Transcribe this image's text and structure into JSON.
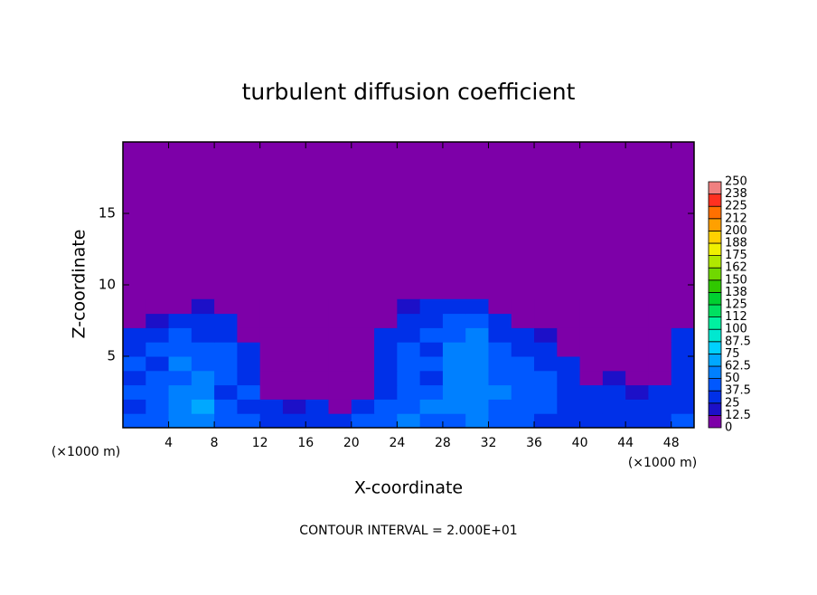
{
  "chart_data": {
    "type": "heatmap",
    "title": "turbulent diffusion coefficient",
    "x_label": "X-coordinate",
    "y_label": "Z-coordinate",
    "x_unit": "(×1000 m)",
    "x_unit_right": "(×1000 m)",
    "note": "CONTOUR INTERVAL = 2.000E+01",
    "xlim": [
      0,
      50
    ],
    "ylim": [
      0,
      20
    ],
    "xticks": [
      4,
      8,
      12,
      16,
      20,
      24,
      28,
      32,
      36,
      40,
      44,
      48
    ],
    "yticks": [
      5,
      10,
      15
    ],
    "x": [
      1,
      3,
      5,
      7,
      9,
      11,
      13,
      15,
      17,
      19,
      21,
      23,
      25,
      27,
      29,
      31,
      33,
      35,
      37,
      39,
      41,
      43,
      45,
      47,
      49
    ],
    "y": [
      0.5,
      1.5,
      2.5,
      3.5,
      4.5,
      5.5,
      6.5,
      7.5,
      8.5
    ],
    "values": [
      [
        40,
        45,
        50,
        60,
        45,
        40,
        35,
        30,
        35,
        25,
        40,
        45,
        50,
        40,
        45,
        55,
        45,
        40,
        35,
        30,
        30,
        35,
        30,
        35,
        40
      ],
      [
        35,
        40,
        55,
        65,
        40,
        35,
        25,
        20,
        25,
        0,
        25,
        40,
        45,
        50,
        50,
        60,
        45,
        45,
        40,
        30,
        30,
        30,
        25,
        30,
        35
      ],
      [
        40,
        45,
        50,
        60,
        35,
        40,
        0,
        0,
        0,
        0,
        0,
        35,
        40,
        45,
        55,
        60,
        50,
        40,
        45,
        35,
        25,
        25,
        20,
        25,
        35
      ],
      [
        35,
        40,
        45,
        55,
        40,
        35,
        0,
        0,
        0,
        0,
        0,
        35,
        40,
        35,
        50,
        55,
        45,
        45,
        40,
        35,
        0,
        20,
        0,
        0,
        35
      ],
      [
        40,
        35,
        50,
        45,
        45,
        35,
        0,
        0,
        0,
        0,
        0,
        30,
        45,
        40,
        55,
        60,
        40,
        40,
        35,
        30,
        0,
        0,
        0,
        0,
        35
      ],
      [
        35,
        40,
        45,
        40,
        40,
        25,
        0,
        0,
        0,
        0,
        0,
        30,
        40,
        35,
        50,
        55,
        40,
        35,
        30,
        0,
        0,
        0,
        0,
        0,
        30
      ],
      [
        30,
        35,
        40,
        35,
        35,
        0,
        0,
        0,
        0,
        0,
        0,
        25,
        35,
        40,
        45,
        50,
        35,
        30,
        20,
        0,
        0,
        0,
        0,
        0,
        25
      ],
      [
        0,
        20,
        30,
        30,
        25,
        0,
        0,
        0,
        0,
        0,
        0,
        0,
        30,
        35,
        40,
        45,
        30,
        0,
        0,
        0,
        0,
        0,
        0,
        0,
        0
      ],
      [
        0,
        0,
        0,
        20,
        0,
        0,
        0,
        0,
        0,
        0,
        0,
        0,
        20,
        25,
        30,
        30,
        0,
        0,
        0,
        0,
        0,
        0,
        0,
        0,
        0
      ]
    ],
    "colorbar": {
      "levels": [
        0,
        12.5,
        25,
        37.5,
        50,
        62.5,
        75,
        87.5,
        100,
        {
          "value": 112.5,
          "label": "112"
        },
        125,
        {
          "value": 137.5,
          "label": "138"
        },
        150,
        {
          "value": 162.5,
          "label": "162"
        },
        175,
        {
          "value": 187.5,
          "label": "188"
        },
        200,
        {
          "value": 212.5,
          "label": "212"
        },
        225,
        {
          "value": 237.5,
          "label": "238"
        },
        250
      ],
      "colors": [
        "#7d00a8",
        "#1c10c8",
        "#0030e8",
        "#0058ff",
        "#0080ff",
        "#00a8ff",
        "#00d0ff",
        "#00e8d0",
        "#00f0a0",
        "#00e060",
        "#00d030",
        "#30c800",
        "#70d800",
        "#b0e800",
        "#f0f000",
        "#ffd000",
        "#ffa000",
        "#ff7000",
        "#ff3020",
        "#f08080"
      ]
    }
  }
}
